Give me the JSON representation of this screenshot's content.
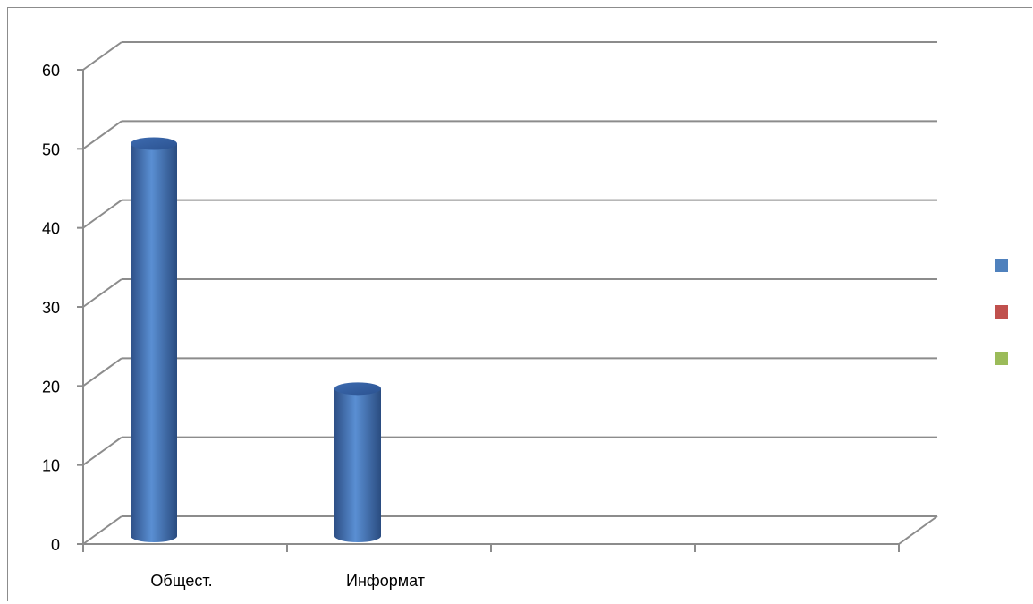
{
  "chart_data": {
    "type": "bar",
    "categories": [
      "Общест.",
      "Информат",
      "",
      ""
    ],
    "series": [
      {
        "values": [
          51,
          20,
          null,
          null
        ],
        "color": "#4f81bd"
      },
      {
        "values": [
          null,
          null,
          null,
          null
        ],
        "color": "#c0504d"
      },
      {
        "values": [
          null,
          null,
          null,
          null
        ],
        "color": "#9bbb59"
      }
    ],
    "y_ticks": [
      "0",
      "10",
      "20",
      "30",
      "40",
      "50",
      "60"
    ],
    "ylim": [
      0,
      60
    ],
    "grid": true,
    "legend": "right",
    "style": "3d-cylinder"
  }
}
